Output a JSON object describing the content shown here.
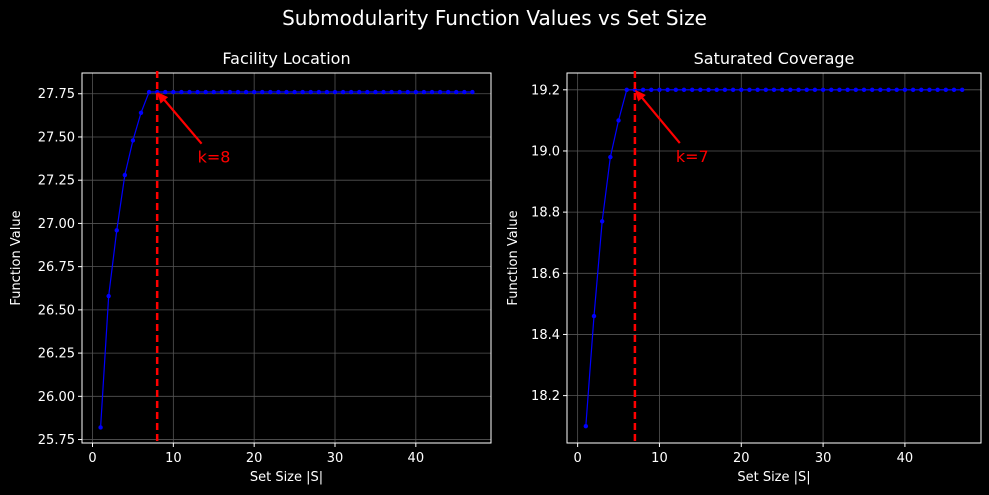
{
  "figure": {
    "title": "Submodularity Function Values vs Set Size",
    "background": "#000000",
    "text_color": "#ffffff",
    "grid_color": "#555555",
    "line_color": "#0000ff",
    "annotation_color": "#ff0000"
  },
  "chart_data": [
    {
      "type": "line",
      "title": "Facility Location",
      "xlabel": "Set Size |S|",
      "ylabel": "Function Value",
      "xlim": [
        -1.3,
        49.3
      ],
      "ylim": [
        25.73,
        27.87
      ],
      "xticks": [
        0,
        10,
        20,
        30,
        40
      ],
      "yticks": [
        25.75,
        26.0,
        26.25,
        26.5,
        26.75,
        27.0,
        27.25,
        27.5,
        27.75
      ],
      "ytick_labels": [
        "25.75",
        "26.00",
        "26.25",
        "26.50",
        "26.75",
        "27.00",
        "27.25",
        "27.50",
        "27.75"
      ],
      "grid": true,
      "series": [
        {
          "x": [
            1,
            2,
            3,
            4,
            5,
            6,
            7,
            8,
            9,
            10,
            11,
            12,
            13,
            14,
            15,
            16,
            17,
            18,
            19,
            20,
            21,
            22,
            23,
            24,
            25,
            26,
            27,
            28,
            29,
            30,
            31,
            32,
            33,
            34,
            35,
            36,
            37,
            38,
            39,
            40,
            41,
            42,
            43,
            44,
            45,
            46,
            47
          ],
          "values": [
            25.82,
            26.58,
            26.96,
            27.28,
            27.48,
            27.64,
            27.76,
            27.76,
            27.76,
            27.76,
            27.76,
            27.76,
            27.76,
            27.76,
            27.76,
            27.76,
            27.76,
            27.76,
            27.76,
            27.76,
            27.76,
            27.76,
            27.76,
            27.76,
            27.76,
            27.76,
            27.76,
            27.76,
            27.76,
            27.76,
            27.76,
            27.76,
            27.76,
            27.76,
            27.76,
            27.76,
            27.76,
            27.76,
            27.76,
            27.76,
            27.76,
            27.76,
            27.76,
            27.76,
            27.76,
            27.76,
            27.76
          ]
        }
      ],
      "vline": 8,
      "annotation": {
        "text": "k=8",
        "point": [
          8,
          27.76
        ],
        "text_pos": [
          13,
          27.38
        ]
      }
    },
    {
      "type": "line",
      "title": "Saturated Coverage",
      "xlabel": "Set Size |S|",
      "ylabel": "Function Value",
      "xlim": [
        -1.3,
        49.3
      ],
      "ylim": [
        18.045,
        19.255
      ],
      "xticks": [
        0,
        10,
        20,
        30,
        40
      ],
      "yticks": [
        18.2,
        18.4,
        18.6,
        18.8,
        19.0,
        19.2
      ],
      "ytick_labels": [
        "18.2",
        "18.4",
        "18.6",
        "18.8",
        "19.0",
        "19.2"
      ],
      "grid": true,
      "series": [
        {
          "x": [
            1,
            2,
            3,
            4,
            5,
            6,
            7,
            8,
            9,
            10,
            11,
            12,
            13,
            14,
            15,
            16,
            17,
            18,
            19,
            20,
            21,
            22,
            23,
            24,
            25,
            26,
            27,
            28,
            29,
            30,
            31,
            32,
            33,
            34,
            35,
            36,
            37,
            38,
            39,
            40,
            41,
            42,
            43,
            44,
            45,
            46,
            47
          ],
          "values": [
            18.1,
            18.46,
            18.77,
            18.98,
            19.1,
            19.2,
            19.2,
            19.2,
            19.2,
            19.2,
            19.2,
            19.2,
            19.2,
            19.2,
            19.2,
            19.2,
            19.2,
            19.2,
            19.2,
            19.2,
            19.2,
            19.2,
            19.2,
            19.2,
            19.2,
            19.2,
            19.2,
            19.2,
            19.2,
            19.2,
            19.2,
            19.2,
            19.2,
            19.2,
            19.2,
            19.2,
            19.2,
            19.2,
            19.2,
            19.2,
            19.2,
            19.2,
            19.2,
            19.2,
            19.2,
            19.2,
            19.2
          ]
        }
      ],
      "vline": 7,
      "annotation": {
        "text": "k=7",
        "point": [
          7,
          19.2
        ],
        "text_pos": [
          12,
          18.98
        ]
      }
    }
  ]
}
